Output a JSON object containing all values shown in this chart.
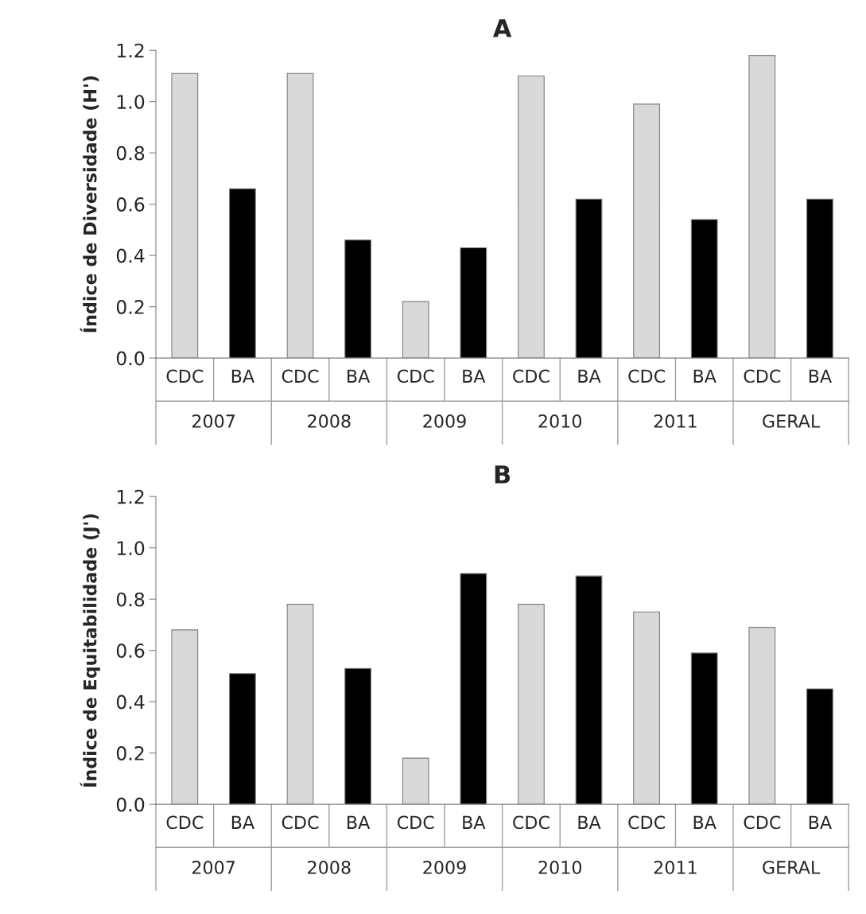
{
  "chart_data": [
    {
      "type": "bar",
      "title": "A",
      "ylabel": "Índice de Diversidade (H')",
      "categories": [
        "CDC",
        "BA",
        "CDC",
        "BA",
        "CDC",
        "BA",
        "CDC",
        "BA",
        "CDC",
        "BA",
        "CDC",
        "BA"
      ],
      "values": [
        1.11,
        0.66,
        1.11,
        0.46,
        0.22,
        0.43,
        1.1,
        0.62,
        0.99,
        0.54,
        1.18,
        0.62
      ],
      "colors": [
        "#d9d9d9",
        "#000000",
        "#d9d9d9",
        "#000000",
        "#d9d9d9",
        "#000000",
        "#d9d9d9",
        "#000000",
        "#d9d9d9",
        "#000000",
        "#d9d9d9",
        "#000000"
      ],
      "annotations": [
        "2007",
        "2008",
        "2009",
        "2010",
        "2011",
        "GERAL"
      ],
      "ylim": [
        0,
        1.2
      ],
      "yticks": [
        {
          "value": 0,
          "label": "0.0"
        },
        {
          "value": 0.2,
          "label": "0.2"
        },
        {
          "value": 0.4,
          "label": "0.4"
        },
        {
          "value": 0.6,
          "label": "0.6"
        },
        {
          "value": 0.8,
          "label": "0.8"
        },
        {
          "value": 1.0,
          "label": "1.0"
        },
        {
          "value": 1.2,
          "label": "1.2"
        }
      ],
      "grid": false,
      "legend": false
    },
    {
      "type": "bar",
      "title": "B",
      "ylabel": "Índice de Equitabilidade (J')",
      "categories": [
        "CDC",
        "BA",
        "CDC",
        "BA",
        "CDC",
        "BA",
        "CDC",
        "BA",
        "CDC",
        "BA",
        "CDC",
        "BA"
      ],
      "values": [
        0.68,
        0.51,
        0.78,
        0.53,
        0.18,
        0.9,
        0.78,
        0.89,
        0.75,
        0.59,
        0.69,
        0.45
      ],
      "colors": [
        "#d9d9d9",
        "#000000",
        "#d9d9d9",
        "#000000",
        "#d9d9d9",
        "#000000",
        "#d9d9d9",
        "#000000",
        "#d9d9d9",
        "#000000",
        "#d9d9d9",
        "#000000"
      ],
      "annotations": [
        "2007",
        "2008",
        "2009",
        "2010",
        "2011",
        "GERAL"
      ],
      "ylim": [
        0,
        1.2
      ],
      "yticks": [
        {
          "value": 0,
          "label": "0.0"
        },
        {
          "value": 0.2,
          "label": "0.2"
        },
        {
          "value": 0.4,
          "label": "0.4"
        },
        {
          "value": 0.6,
          "label": "0.6"
        },
        {
          "value": 0.8,
          "label": "0.8"
        },
        {
          "value": 1.0,
          "label": "1.0"
        },
        {
          "value": 1.2,
          "label": "1.2"
        }
      ],
      "grid": false,
      "legend": false
    }
  ]
}
